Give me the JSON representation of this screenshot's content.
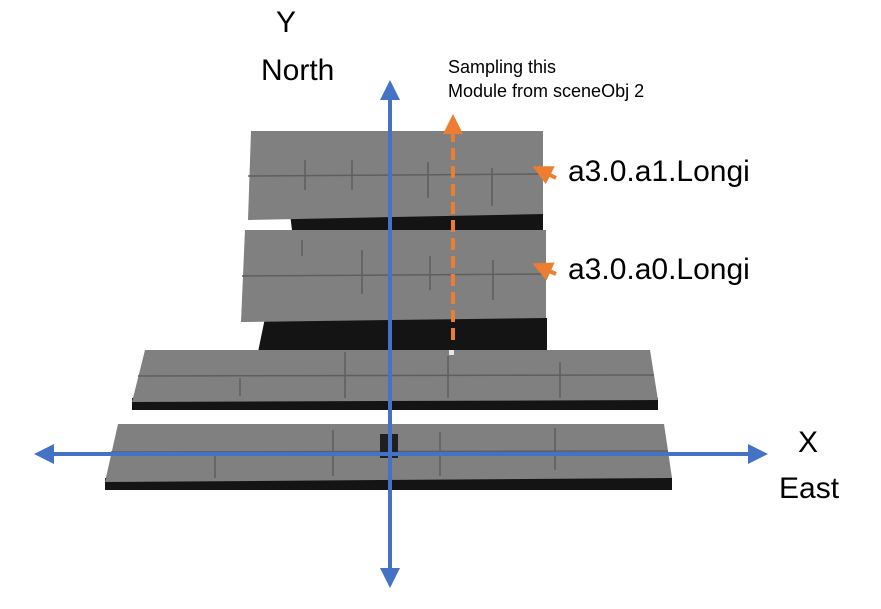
{
  "y_axis": {
    "letter": "Y",
    "direction": "North"
  },
  "x_axis": {
    "letter": "X",
    "direction": "East"
  },
  "annotation": {
    "line1": "Sampling this",
    "line2": "Module from sceneObj 2"
  },
  "modules": {
    "upper": "a3.0.a1.Longi",
    "lower": "a3.0.a0.Longi"
  },
  "colors": {
    "axis": "#4472c4",
    "arrow": "#ed7d31",
    "panel": "#808080",
    "shadow": "#141414"
  }
}
